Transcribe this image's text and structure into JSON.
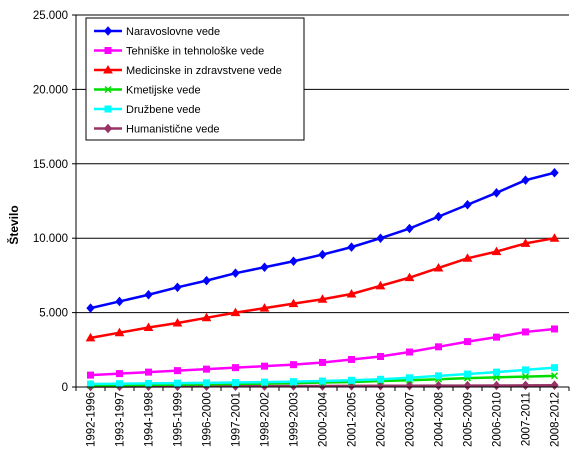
{
  "chart_data": {
    "type": "line",
    "title": "",
    "xlabel": "",
    "ylabel": "Število",
    "ylim": [
      0,
      25000
    ],
    "yticks": [
      0,
      5000,
      10000,
      15000,
      20000,
      25000
    ],
    "ytick_labels": [
      "0",
      "5.000",
      "10.000",
      "15.000",
      "20.000",
      "25.000"
    ],
    "grid": "horizontal",
    "legend_position": "top-left",
    "categories": [
      "1992-1996",
      "1993-1997",
      "1994-1998",
      "1995-1999",
      "1996-2000",
      "1997-2001",
      "1998-2002",
      "1999-2003",
      "2000-2004",
      "2001-2005",
      "2002-2006",
      "2003-2007",
      "2004-2008",
      "2005-2009",
      "2006-2010",
      "2007-2011",
      "2008-2012"
    ],
    "series": [
      {
        "name": "Naravoslovne vede",
        "color": "#0000ff",
        "marker": "diamond",
        "values": [
          5300,
          5750,
          6200,
          6700,
          7150,
          7650,
          8050,
          8450,
          8900,
          9400,
          10000,
          10650,
          11450,
          12250,
          13050,
          13900,
          14400
        ]
      },
      {
        "name": "Tehniške in tehnološke vede",
        "color": "#ff00ff",
        "marker": "square",
        "values": [
          800,
          900,
          1000,
          1100,
          1200,
          1300,
          1400,
          1500,
          1650,
          1850,
          2050,
          2350,
          2700,
          3050,
          3350,
          3700,
          3900
        ]
      },
      {
        "name": "Medicinske in zdravstvene vede",
        "color": "#ff0000",
        "marker": "triangle",
        "values": [
          3300,
          3650,
          4000,
          4300,
          4650,
          5000,
          5300,
          5600,
          5900,
          6250,
          6800,
          7350,
          8000,
          8650,
          9100,
          9650,
          10000
        ]
      },
      {
        "name": "Kmetijske vede",
        "color": "#00dd00",
        "marker": "x",
        "values": [
          100,
          120,
          140,
          160,
          180,
          200,
          230,
          260,
          300,
          340,
          400,
          450,
          520,
          600,
          650,
          700,
          750
        ]
      },
      {
        "name": "Družbene vede",
        "color": "#00ffff",
        "marker": "square",
        "values": [
          200,
          220,
          240,
          260,
          280,
          300,
          330,
          360,
          400,
          450,
          520,
          620,
          750,
          870,
          1000,
          1150,
          1300
        ]
      },
      {
        "name": "Humanistične vede",
        "color": "#993366",
        "marker": "diamond",
        "values": [
          30,
          35,
          40,
          45,
          50,
          55,
          60,
          65,
          70,
          75,
          80,
          85,
          90,
          95,
          100,
          110,
          120
        ]
      }
    ]
  }
}
